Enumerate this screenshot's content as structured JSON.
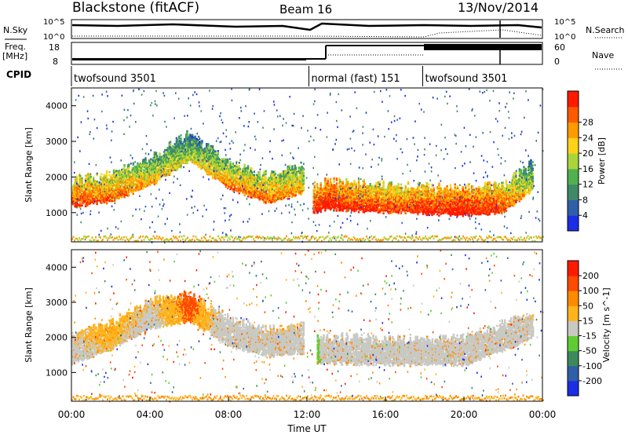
{
  "header": {
    "station": "Blackstone (fitACF)",
    "beam": "Beam 16",
    "date": "13/Nov/2014"
  },
  "left_labels": {
    "nsky": "N.Sky",
    "freq_line1": "Freq.",
    "freq_line2": "[MHz]",
    "cpid": "CPID"
  },
  "right_labels": {
    "nsearch": "N.Search",
    "nave": "Nave"
  },
  "noise_panel": {
    "left_ticks": [
      "10^5",
      "10^0"
    ],
    "right_ticks": [
      "10^5",
      "10^0"
    ]
  },
  "freq_panel": {
    "left_ticks": [
      "18",
      "8"
    ],
    "right_ticks": [
      "60",
      "0"
    ]
  },
  "cpid_segments": [
    {
      "label": "twofsound 3501",
      "start_hour": 0.0,
      "end_hour": 12.1
    },
    {
      "label": "normal (fast) 151",
      "start_hour": 12.1,
      "end_hour": 17.9
    },
    {
      "label": "twofsound 3501",
      "start_hour": 17.9,
      "end_hour": 24.0
    }
  ],
  "x_axis": {
    "label": "Time UT",
    "ticks": [
      "00:00",
      "04:00",
      "08:00",
      "12:00",
      "16:00",
      "20:00",
      "00:00"
    ]
  },
  "power_panel": {
    "ylabel": "Slant Range [km]",
    "yticks": [
      "1000",
      "2000",
      "3000",
      "4000"
    ],
    "colorbar_label": "Power [dB]",
    "colorbar_ticks": [
      "4",
      "8",
      "12",
      "16",
      "20",
      "24",
      "28"
    ],
    "colors": [
      "#1b2ee6",
      "#2f5fa8",
      "#3f8a66",
      "#4fb24f",
      "#a9d53a",
      "#ffd21a",
      "#ff9a00",
      "#ff5a00",
      "#ff1a00"
    ]
  },
  "velocity_panel": {
    "ylabel": "Slant Range [km]",
    "yticks": [
      "1000",
      "2000",
      "3000",
      "4000"
    ],
    "colorbar_label": "Velocity [m s^-1]",
    "colorbar_ticks": [
      "200",
      "100",
      "50",
      "15",
      "-15",
      "-50",
      "-100",
      "-200"
    ],
    "colors": [
      "#1b2ee6",
      "#2f5fa8",
      "#3c8a5c",
      "#5fcd32",
      "#c9c9c4",
      "#ffb41e",
      "#ff8a00",
      "#ff4a00",
      "#ff1a00"
    ]
  },
  "chart_data": {
    "type": "heatmap",
    "x_range_hours": [
      0,
      24
    ],
    "y_range_km": [
      180,
      4500
    ],
    "power_bands": [
      {
        "hours": [
          0,
          2,
          4,
          6,
          8,
          10,
          11.8
        ],
        "range_km": [
          1400,
          1550,
          2000,
          2700,
          1900,
          1500,
          1800
        ],
        "level_db": [
          24,
          22,
          18,
          14,
          20,
          22,
          18
        ]
      },
      {
        "hours": [
          12.3,
          13,
          14,
          16,
          18,
          20,
          22,
          23.5
        ],
        "range_km": [
          1200,
          1350,
          1300,
          1250,
          1200,
          1150,
          1250,
          1900
        ],
        "level_db": [
          26,
          28,
          26,
          24,
          26,
          28,
          24,
          14
        ]
      }
    ],
    "velocity_bands": [
      {
        "hours": [
          0,
          2,
          4,
          6,
          8,
          10,
          11.8
        ],
        "range_km": [
          1500,
          1900,
          2500,
          2700,
          2000,
          1700,
          1800
        ],
        "velocity_ms": [
          -15,
          -30,
          -15,
          -50,
          0,
          -15,
          -15
        ]
      },
      {
        "hours": [
          12.5,
          13,
          16,
          20,
          23.5
        ],
        "range_km": [
          1500,
          1500,
          1450,
          1450,
          2200
        ],
        "velocity_ms": [
          50,
          0,
          0,
          0,
          -15
        ]
      }
    ]
  }
}
